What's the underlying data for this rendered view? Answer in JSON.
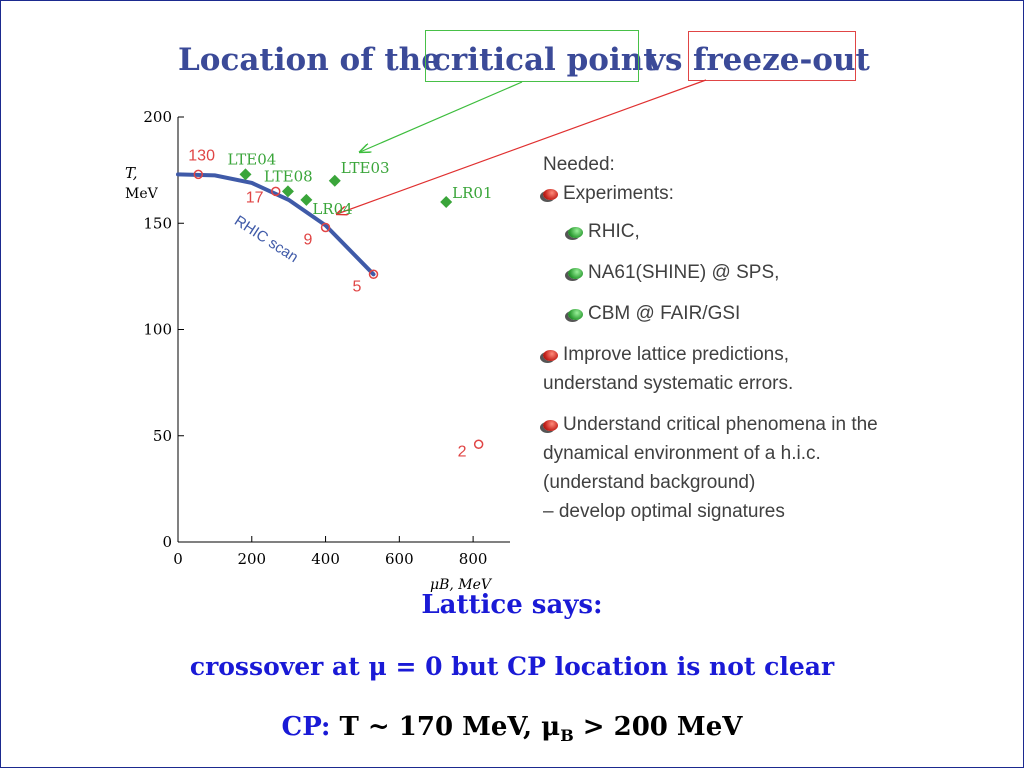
{
  "title": {
    "part1": "Location of the",
    "part2": "critical point",
    "part3": "vs",
    "part4": "freeze-out"
  },
  "colors": {
    "title": "#3b4a98",
    "green_box": "#48c048",
    "red_box": "#e04545",
    "curve": "#3f5aa8",
    "lattice_points": "#3aa53a",
    "freezeout_points": "#e04545",
    "body_blue": "#1a1ad6"
  },
  "chart_data": {
    "type": "scatter",
    "xlabel": "μB, MeV",
    "ylabel": "T, MeV",
    "xlim": [
      0,
      900
    ],
    "ylim": [
      0,
      200
    ],
    "xticks": [
      "0",
      "200",
      "400",
      "600",
      "800"
    ],
    "yticks": [
      "0",
      "50",
      "100",
      "150",
      "200"
    ],
    "series": [
      {
        "kind": "lattice",
        "marker": "diamond",
        "points": [
          {
            "label": "LTE04",
            "x": 183,
            "y": 173
          },
          {
            "label": "LTE08",
            "x": 298,
            "y": 165
          },
          {
            "label": "LR04",
            "x": 348,
            "y": 161
          },
          {
            "label": "LTE03",
            "x": 425,
            "y": 170
          },
          {
            "label": "LR01",
            "x": 727,
            "y": 160
          }
        ]
      },
      {
        "kind": "freeze-out",
        "marker": "open-circle",
        "points": [
          {
            "label": "130",
            "x": 55,
            "y": 173
          },
          {
            "label": "17",
            "x": 265,
            "y": 165
          },
          {
            "label": "9",
            "x": 400,
            "y": 148
          },
          {
            "label": "5",
            "x": 530,
            "y": 126
          },
          {
            "label": "2",
            "x": 815,
            "y": 46
          }
        ]
      }
    ],
    "curve": {
      "label": "RHIC scan",
      "points": [
        [
          0,
          173
        ],
        [
          100,
          172.5
        ],
        [
          200,
          169
        ],
        [
          300,
          161
        ],
        [
          400,
          149
        ],
        [
          530,
          126
        ]
      ]
    }
  },
  "needed": {
    "heading": "Needed:",
    "experiments": "Experiments:",
    "rhic": "RHIC,",
    "na61": "NA61(SHINE) @ SPS,",
    "cbm": "CBM @ FAIR/GSI",
    "improve": "Improve lattice predictions, understand systematic errors.",
    "understand_l1": "Understand critical phenomena in the dynamical environment of a h.i.c.",
    "understand_l2": "(understand background)",
    "understand_l3": "– develop optimal signatures"
  },
  "bottom": {
    "lattice": "Lattice says:",
    "crossover": "crossover at μ = 0 but CP location is not clear",
    "cp_label": "CP:",
    "cp_t": "T  ~ 170 MeV,  μ",
    "cp_sub": "B",
    "cp_rest": " > 200 MeV"
  }
}
